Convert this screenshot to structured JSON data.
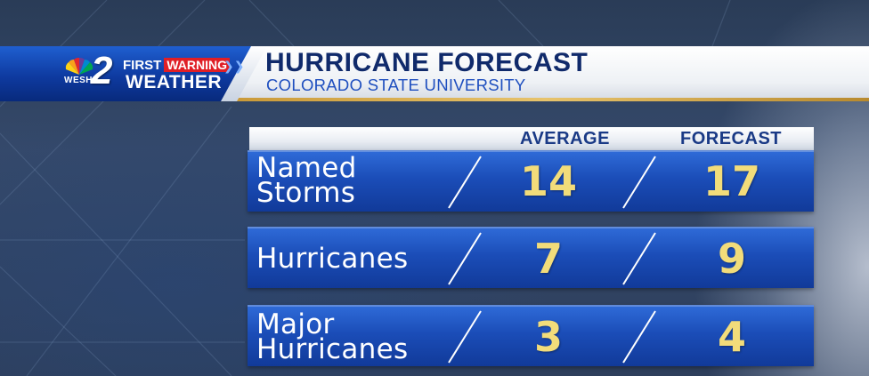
{
  "brand": {
    "station_call": "WESH",
    "channel_number": "2",
    "first": "FIRST",
    "warning": "WARNING",
    "chevrons": "❯❯",
    "weather": "WEATHER"
  },
  "header": {
    "title": "HURRICANE FORECAST",
    "subtitle": "COLORADO STATE UNIVERSITY"
  },
  "table": {
    "columns": [
      "AVERAGE",
      "FORECAST"
    ],
    "rows": [
      {
        "label_line1": "Named",
        "label_line2": "Storms",
        "average": "14",
        "forecast": "17"
      },
      {
        "label_line1": "Hurricanes",
        "label_line2": "",
        "average": "7",
        "forecast": "9"
      },
      {
        "label_line1": "Major",
        "label_line2": "Hurricanes",
        "average": "3",
        "forecast": "4"
      }
    ]
  },
  "colors": {
    "banner_blue": "#0e3aa0",
    "title_navy": "#102a6b",
    "subtitle_blue": "#1f4fbf",
    "value_gold": "#f2dc7a",
    "row_blue": "#1b4db8",
    "warning_red": "#e01f26",
    "accent_gold": "#e7c36c"
  }
}
